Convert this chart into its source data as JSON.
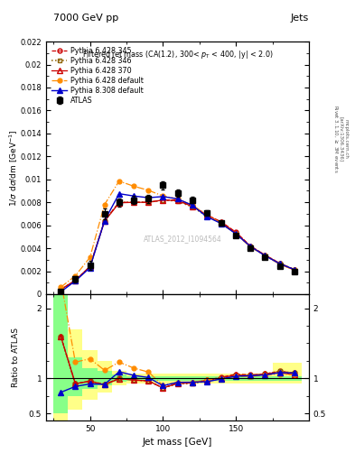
{
  "title_left": "7000 GeV pp",
  "title_right": "Jets",
  "annotation": "ATLAS_2012_I1094564",
  "ylabel_main": "1/σ dσ/dm [GeV$^{-1}$]",
  "ylabel_ratio": "Ratio to ATLAS",
  "xlabel": "Jet mass [GeV]",
  "jet_mass": [
    30,
    40,
    50,
    60,
    70,
    80,
    90,
    100,
    110,
    120,
    130,
    140,
    150,
    160,
    170,
    180,
    190
  ],
  "atlas_y": [
    0.00025,
    0.0013,
    0.0025,
    0.007,
    0.008,
    0.0082,
    0.0083,
    0.0095,
    0.0088,
    0.0082,
    0.0071,
    0.0062,
    0.0051,
    0.004,
    0.0032,
    0.00245,
    0.002
  ],
  "atlas_yerr": [
    5e-05,
    0.00025,
    0.0004,
    0.0005,
    0.00035,
    0.00035,
    0.00035,
    0.00035,
    0.0003,
    0.00025,
    0.0002,
    0.0002,
    0.00018,
    0.00015,
    0.00015,
    0.00012,
    0.00012
  ],
  "p6_345_y": [
    0.0004,
    0.0012,
    0.0024,
    0.0064,
    0.008,
    0.008,
    0.008,
    0.0082,
    0.0082,
    0.0077,
    0.0069,
    0.0063,
    0.0054,
    0.0042,
    0.0034,
    0.0027,
    0.00215
  ],
  "p6_346_y": [
    0.0004,
    0.0012,
    0.0024,
    0.0064,
    0.008,
    0.008,
    0.008,
    0.0082,
    0.0081,
    0.0076,
    0.0068,
    0.0062,
    0.0053,
    0.00415,
    0.0034,
    0.0027,
    0.00215
  ],
  "p6_370_y": [
    0.0004,
    0.0012,
    0.0024,
    0.00635,
    0.00795,
    0.008,
    0.008,
    0.0082,
    0.00815,
    0.00765,
    0.0069,
    0.00625,
    0.00535,
    0.00415,
    0.0034,
    0.00265,
    0.0021
  ],
  "p6_def_y": [
    0.0006,
    0.0016,
    0.0032,
    0.0078,
    0.00985,
    0.0094,
    0.00905,
    0.00855,
    0.0083,
    0.00775,
    0.00695,
    0.00615,
    0.00525,
    0.0041,
    0.00335,
    0.0026,
    0.0021
  ],
  "p8_308_y": [
    0.0002,
    0.00115,
    0.0023,
    0.0064,
    0.00875,
    0.00855,
    0.0084,
    0.0085,
    0.0083,
    0.00775,
    0.00675,
    0.00615,
    0.00525,
    0.00415,
    0.00335,
    0.00265,
    0.00215
  ],
  "green_band_lo": [
    0.5,
    0.75,
    0.85,
    0.9,
    0.95,
    0.97,
    0.97,
    0.97,
    0.97,
    0.97,
    0.97,
    0.97,
    0.97,
    0.97,
    0.97,
    0.97,
    0.97
  ],
  "green_band_hi": [
    2.5,
    1.3,
    1.15,
    1.1,
    1.05,
    1.03,
    1.03,
    1.03,
    1.03,
    1.03,
    1.03,
    1.03,
    1.03,
    1.03,
    1.03,
    1.03,
    1.03
  ],
  "yellow_band_lo": [
    0.4,
    0.55,
    0.7,
    0.8,
    0.9,
    0.93,
    0.93,
    0.93,
    0.93,
    0.93,
    0.93,
    0.93,
    0.93,
    0.93,
    0.93,
    0.93,
    0.93
  ],
  "yellow_band_hi": [
    3.5,
    1.7,
    1.4,
    1.25,
    1.1,
    1.07,
    1.07,
    1.07,
    1.07,
    1.07,
    1.07,
    1.07,
    1.07,
    1.07,
    1.07,
    1.22,
    1.22
  ],
  "xlim": [
    20,
    200
  ],
  "ylim_main": [
    0.0,
    0.022
  ],
  "ylim_ratio": [
    0.4,
    2.2
  ],
  "color_345": "#cc0000",
  "color_346": "#8B6000",
  "color_370": "#cc0000",
  "color_def": "#FF8C00",
  "color_p8": "#0000cc",
  "yticks_main": [
    0.0,
    0.002,
    0.004,
    0.006,
    0.008,
    0.01,
    0.012,
    0.014,
    0.016,
    0.018,
    0.02,
    0.022
  ],
  "ytick_labels_main": [
    "0",
    "0.002",
    "0.004",
    "0.006",
    "0.008",
    "0.01",
    "0.012",
    "0.014",
    "0.016",
    "0.018",
    "0.02",
    "0.022"
  ]
}
